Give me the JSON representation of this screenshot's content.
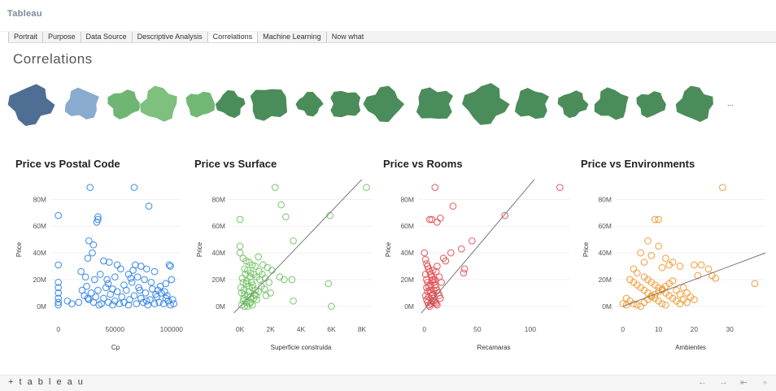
{
  "app": {
    "brand": "Tableau"
  },
  "tabs": [
    {
      "label": "Portrait",
      "active": false
    },
    {
      "label": "Purpose",
      "active": false
    },
    {
      "label": "Data Source",
      "active": false
    },
    {
      "label": "Descriptive Analysis",
      "active": false
    },
    {
      "label": "Correlations",
      "active": true
    },
    {
      "label": "Machine Learning",
      "active": false
    },
    {
      "label": "Now what",
      "active": false
    }
  ],
  "page": {
    "title": "Correlations"
  },
  "maps": {
    "overflow_label": "...",
    "regions": [
      {
        "name": "region-1",
        "color": "#4e6e94"
      },
      {
        "name": "region-2",
        "color": "#8aabd0"
      },
      {
        "name": "region-3",
        "color": "#6fb673"
      },
      {
        "name": "region-4",
        "color": "#7ec07e"
      },
      {
        "name": "region-5",
        "color": "#71b874"
      },
      {
        "name": "region-6",
        "color": "#4b8d5a"
      },
      {
        "name": "region-7",
        "color": "#4b8d5a"
      },
      {
        "name": "region-8",
        "color": "#4b8d5a"
      },
      {
        "name": "region-9",
        "color": "#4b8d5a"
      },
      {
        "name": "region-10",
        "color": "#4b8d5a"
      },
      {
        "name": "region-11",
        "color": "#4b8d5a"
      },
      {
        "name": "region-12",
        "color": "#4b8d5a"
      },
      {
        "name": "region-13",
        "color": "#4b8d5a"
      },
      {
        "name": "region-14",
        "color": "#4b8d5a"
      },
      {
        "name": "region-15",
        "color": "#4b8d5a"
      },
      {
        "name": "region-16",
        "color": "#4b8d5a"
      },
      {
        "name": "region-17",
        "color": "#4b8d5a"
      },
      {
        "name": "region-18",
        "color": "#4b8d5a"
      }
    ]
  },
  "footer": {
    "logo": "+ t a b l e a u",
    "icons": [
      "undo-icon",
      "redo-icon",
      "revert-icon",
      "share-icon"
    ]
  },
  "chart_data": [
    {
      "type": "scatter",
      "title": "Price vs Postal Code",
      "xlabel": "Cp",
      "ylabel": "Price",
      "xlim": [
        -7000,
        108000
      ],
      "ylim": [
        -8,
        93
      ],
      "xticks": [
        0,
        50000,
        100000
      ],
      "xtick_labels": [
        "0",
        "50000",
        "100000"
      ],
      "yticks": [
        0,
        20,
        40,
        60,
        80
      ],
      "ytick_labels": [
        "0M",
        "20M",
        "40M",
        "60M",
        "80M"
      ],
      "color": "#2a7fe6",
      "trendline": null,
      "points": [
        [
          0,
          68
        ],
        [
          28000,
          89
        ],
        [
          67000,
          89
        ],
        [
          35000,
          67
        ],
        [
          35000,
          65
        ],
        [
          34000,
          63
        ],
        [
          80000,
          75
        ],
        [
          0,
          31
        ],
        [
          27000,
          49
        ],
        [
          31000,
          46
        ],
        [
          30000,
          40
        ],
        [
          26000,
          36
        ],
        [
          40000,
          34
        ],
        [
          45000,
          33
        ],
        [
          52000,
          31
        ],
        [
          55000,
          28
        ],
        [
          68000,
          31
        ],
        [
          73000,
          30
        ],
        [
          78000,
          28
        ],
        [
          85000,
          26
        ],
        [
          98000,
          31
        ],
        [
          99000,
          30
        ],
        [
          20000,
          26
        ],
        [
          24000,
          22
        ],
        [
          37000,
          24
        ],
        [
          43000,
          20
        ],
        [
          50000,
          22
        ],
        [
          62000,
          24
        ],
        [
          66000,
          27
        ],
        [
          70000,
          22
        ],
        [
          76000,
          20
        ],
        [
          82000,
          18
        ],
        [
          90000,
          15
        ],
        [
          95000,
          17
        ],
        [
          100000,
          20
        ],
        [
          0,
          18
        ],
        [
          0,
          14
        ],
        [
          0,
          10
        ],
        [
          0,
          6
        ],
        [
          0,
          3
        ],
        [
          0,
          1
        ],
        [
          8000,
          4
        ],
        [
          12000,
          2
        ],
        [
          18000,
          3
        ],
        [
          21000,
          12
        ],
        [
          23000,
          8
        ],
        [
          25000,
          15
        ],
        [
          27000,
          5
        ],
        [
          29000,
          10
        ],
        [
          31000,
          3
        ],
        [
          33000,
          7
        ],
        [
          35000,
          12
        ],
        [
          38000,
          2
        ],
        [
          40000,
          6
        ],
        [
          42000,
          14
        ],
        [
          44000,
          3
        ],
        [
          46000,
          9
        ],
        [
          48000,
          1
        ],
        [
          50000,
          4
        ],
        [
          52000,
          11
        ],
        [
          54000,
          2
        ],
        [
          56000,
          7
        ],
        [
          58000,
          3
        ],
        [
          60000,
          12
        ],
        [
          63000,
          5
        ],
        [
          65000,
          18
        ],
        [
          67000,
          8
        ],
        [
          69000,
          2
        ],
        [
          71000,
          14
        ],
        [
          73000,
          6
        ],
        [
          75000,
          3
        ],
        [
          77000,
          10
        ],
        [
          79000,
          1
        ],
        [
          81000,
          5
        ],
        [
          83000,
          13
        ],
        [
          85000,
          2
        ],
        [
          87000,
          7
        ],
        [
          89000,
          3
        ],
        [
          91000,
          10
        ],
        [
          93000,
          2
        ],
        [
          95000,
          6
        ],
        [
          97000,
          4
        ],
        [
          99000,
          1
        ],
        [
          101000,
          5
        ],
        [
          102000,
          2
        ],
        [
          32000,
          20
        ],
        [
          44000,
          17
        ],
        [
          58000,
          16
        ],
        [
          64000,
          21
        ],
        [
          72000,
          12
        ],
        [
          86000,
          9
        ],
        [
          94000,
          11
        ],
        [
          26000,
          6
        ],
        [
          36000,
          1
        ],
        [
          48000,
          13
        ],
        [
          62000,
          1
        ],
        [
          78000,
          4
        ],
        [
          88000,
          12
        ],
        [
          96000,
          8
        ]
      ]
    },
    {
      "type": "scatter",
      "title": "Price vs Surface",
      "xlabel": "Superficie construida",
      "ylabel": "Price",
      "xlim": [
        -700,
        8700
      ],
      "ylim": [
        -8,
        93
      ],
      "xticks": [
        0,
        2000,
        4000,
        6000,
        8000
      ],
      "xtick_labels": [
        "0K",
        "2K",
        "4K",
        "6K",
        "8K"
      ],
      "yticks": [
        0,
        20,
        40,
        60,
        80
      ],
      "ytick_labels": [
        "0M",
        "20M",
        "40M",
        "60M",
        "80M"
      ],
      "color": "#6fbf62",
      "trendline": [
        [
          -400,
          -5
        ],
        [
          8000,
          95
        ]
      ],
      "points": [
        [
          8300,
          89
        ],
        [
          2300,
          89
        ],
        [
          2700,
          76
        ],
        [
          3000,
          67
        ],
        [
          5900,
          68
        ],
        [
          0,
          65
        ],
        [
          0,
          45
        ],
        [
          3500,
          49
        ],
        [
          1200,
          37
        ],
        [
          1500,
          31
        ],
        [
          1800,
          29
        ],
        [
          2100,
          27
        ],
        [
          2600,
          22
        ],
        [
          2900,
          20
        ],
        [
          3400,
          20
        ],
        [
          5800,
          17
        ],
        [
          3500,
          4
        ],
        [
          6000,
          0
        ],
        [
          0,
          40
        ],
        [
          200,
          36
        ],
        [
          400,
          34
        ],
        [
          600,
          33
        ],
        [
          800,
          31
        ],
        [
          1000,
          30
        ],
        [
          300,
          28
        ],
        [
          500,
          27
        ],
        [
          700,
          25
        ],
        [
          900,
          24
        ],
        [
          1100,
          22
        ],
        [
          1300,
          20
        ],
        [
          200,
          18
        ],
        [
          400,
          17
        ],
        [
          600,
          15
        ],
        [
          800,
          14
        ],
        [
          1000,
          12
        ],
        [
          1200,
          11
        ],
        [
          100,
          10
        ],
        [
          300,
          9
        ],
        [
          500,
          8
        ],
        [
          700,
          7
        ],
        [
          900,
          6
        ],
        [
          1100,
          5
        ],
        [
          200,
          4
        ],
        [
          400,
          3
        ],
        [
          600,
          2
        ],
        [
          800,
          1
        ],
        [
          100,
          1
        ],
        [
          300,
          0
        ],
        [
          500,
          0
        ],
        [
          50,
          14
        ],
        [
          150,
          21
        ],
        [
          250,
          12
        ],
        [
          350,
          24
        ],
        [
          450,
          19
        ],
        [
          550,
          11
        ],
        [
          650,
          22
        ],
        [
          750,
          18
        ],
        [
          850,
          16
        ],
        [
          950,
          9
        ],
        [
          1400,
          15
        ],
        [
          1600,
          13
        ],
        [
          1700,
          8
        ],
        [
          2000,
          10
        ],
        [
          1900,
          18
        ],
        [
          1250,
          26
        ],
        [
          1450,
          24
        ],
        [
          1650,
          21
        ],
        [
          250,
          6
        ],
        [
          700,
          3
        ],
        [
          1050,
          8
        ]
      ]
    },
    {
      "type": "scatter",
      "title": "Price vs Rooms",
      "xlabel": "Recamaras",
      "ylabel": "Price",
      "xlim": [
        -6,
        137
      ],
      "ylim": [
        -8,
        93
      ],
      "xticks": [
        0,
        50,
        100
      ],
      "xtick_labels": [
        "0",
        "50",
        "100"
      ],
      "yticks": [
        0,
        20,
        40,
        60,
        80
      ],
      "ytick_labels": [
        "0M",
        "20M",
        "40M",
        "60M",
        "80M"
      ],
      "color": "#e04a4e",
      "trendline": [
        [
          -3,
          -5
        ],
        [
          104,
          95
        ]
      ],
      "points": [
        [
          128,
          89
        ],
        [
          10,
          89
        ],
        [
          27,
          75
        ],
        [
          76,
          68
        ],
        [
          5,
          65
        ],
        [
          7,
          65
        ],
        [
          15,
          66
        ],
        [
          12,
          63
        ],
        [
          45,
          49
        ],
        [
          35,
          43
        ],
        [
          25,
          40
        ],
        [
          18,
          36
        ],
        [
          38,
          28
        ],
        [
          37,
          25
        ],
        [
          20,
          34
        ],
        [
          0,
          40
        ],
        [
          1,
          35
        ],
        [
          2,
          32
        ],
        [
          3,
          30
        ],
        [
          4,
          28
        ],
        [
          5,
          26
        ],
        [
          6,
          24
        ],
        [
          7,
          22
        ],
        [
          8,
          20
        ],
        [
          9,
          18
        ],
        [
          10,
          16
        ],
        [
          11,
          14
        ],
        [
          12,
          12
        ],
        [
          13,
          10
        ],
        [
          14,
          8
        ],
        [
          15,
          6
        ],
        [
          1,
          24
        ],
        [
          2,
          20
        ],
        [
          3,
          18
        ],
        [
          4,
          15
        ],
        [
          5,
          12
        ],
        [
          6,
          10
        ],
        [
          7,
          8
        ],
        [
          8,
          6
        ],
        [
          9,
          4
        ],
        [
          10,
          3
        ],
        [
          11,
          2
        ],
        [
          12,
          1
        ],
        [
          1,
          8
        ],
        [
          2,
          5
        ],
        [
          3,
          3
        ],
        [
          4,
          1
        ],
        [
          5,
          0
        ],
        [
          6,
          2
        ],
        [
          7,
          4
        ],
        [
          8,
          9
        ],
        [
          9,
          12
        ],
        [
          10,
          20
        ],
        [
          11,
          26
        ],
        [
          12,
          30
        ],
        [
          2,
          14
        ],
        [
          3,
          11
        ],
        [
          4,
          7
        ],
        [
          6,
          16
        ],
        [
          7,
          19
        ],
        [
          8,
          27
        ],
        [
          14,
          22
        ],
        [
          16,
          18
        ]
      ]
    },
    {
      "type": "scatter",
      "title": "Price vs Environments",
      "xlabel": "Ambientes",
      "ylabel": "Price",
      "xlim": [
        -2,
        40
      ],
      "ylim": [
        -8,
        93
      ],
      "xticks": [
        0,
        10,
        20,
        30
      ],
      "xtick_labels": [
        "0",
        "10",
        "20",
        "30"
      ],
      "yticks": [
        0,
        20,
        40,
        60,
        80
      ],
      "ytick_labels": [
        "0M",
        "20M",
        "40M",
        "60M",
        "80M"
      ],
      "color": "#f0952a",
      "trendline": [
        [
          0,
          0
        ],
        [
          40,
          40
        ]
      ],
      "points": [
        [
          28,
          89
        ],
        [
          9,
          65
        ],
        [
          10,
          65
        ],
        [
          7,
          49
        ],
        [
          10,
          45
        ],
        [
          5,
          40
        ],
        [
          8,
          38
        ],
        [
          12,
          36
        ],
        [
          6,
          33
        ],
        [
          13,
          31
        ],
        [
          14,
          33
        ],
        [
          16,
          30
        ],
        [
          20,
          31
        ],
        [
          24,
          28
        ],
        [
          26,
          21
        ],
        [
          37,
          17
        ],
        [
          21,
          23
        ],
        [
          25,
          23
        ],
        [
          22,
          31
        ],
        [
          11,
          29
        ],
        [
          3,
          28
        ],
        [
          4,
          25
        ],
        [
          6,
          22
        ],
        [
          7,
          20
        ],
        [
          8,
          18
        ],
        [
          9,
          16
        ],
        [
          10,
          14
        ],
        [
          11,
          12
        ],
        [
          12,
          10
        ],
        [
          13,
          8
        ],
        [
          14,
          6
        ],
        [
          15,
          4
        ],
        [
          16,
          2
        ],
        [
          2,
          20
        ],
        [
          3,
          18
        ],
        [
          4,
          16
        ],
        [
          5,
          14
        ],
        [
          6,
          12
        ],
        [
          7,
          10
        ],
        [
          8,
          8
        ],
        [
          9,
          6
        ],
        [
          10,
          4
        ],
        [
          11,
          2
        ],
        [
          12,
          1
        ],
        [
          1,
          6
        ],
        [
          2,
          4
        ],
        [
          3,
          2
        ],
        [
          4,
          1
        ],
        [
          5,
          0
        ],
        [
          6,
          3
        ],
        [
          7,
          5
        ],
        [
          8,
          7
        ],
        [
          9,
          9
        ],
        [
          10,
          11
        ],
        [
          11,
          13
        ],
        [
          12,
          15
        ],
        [
          13,
          17
        ],
        [
          14,
          19
        ],
        [
          17,
          14
        ],
        [
          18,
          10
        ],
        [
          19,
          7
        ],
        [
          20,
          5
        ],
        [
          15,
          12
        ],
        [
          16,
          9
        ],
        [
          17,
          5
        ],
        [
          18,
          3
        ],
        [
          0,
          2
        ],
        [
          1,
          1
        ]
      ]
    }
  ]
}
